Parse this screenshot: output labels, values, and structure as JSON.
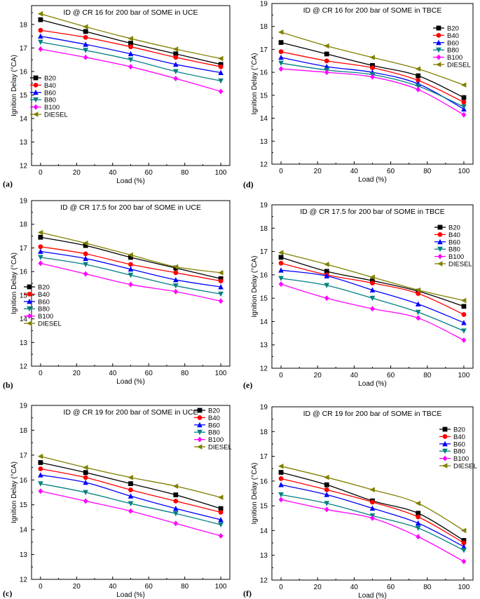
{
  "legend_labels": [
    "B20",
    "B40",
    "B60",
    "B80",
    "B100",
    "DIESEL"
  ],
  "series_colors": [
    "#000000",
    "#ff0000",
    "#0000ff",
    "#008080",
    "#ff00ff",
    "#808000"
  ],
  "series_markers": [
    "square",
    "circle",
    "triangle-up",
    "triangle-down",
    "diamond",
    "triangle-left"
  ],
  "chart_data": [
    {
      "panel_label": "(a)",
      "type": "line",
      "title": "ID @ CR 16 for 200 bar of SOME in UCE",
      "xlabel": "Load (%)",
      "ylabel": "Ignition Delay (°CA)",
      "x": [
        0,
        25,
        50,
        75,
        100
      ],
      "xlim": [
        -5,
        105
      ],
      "ylim": [
        12,
        18.8
      ],
      "xticks": [
        "0",
        "20",
        "40",
        "60",
        "80",
        "100"
      ],
      "yticks": [
        "12",
        "13",
        "14",
        "15",
        "16",
        "17",
        "18"
      ],
      "legend_position": "middle-left",
      "series": [
        {
          "name": "B20",
          "values": [
            18.2,
            17.7,
            17.2,
            16.75,
            16.3
          ]
        },
        {
          "name": "B40",
          "values": [
            17.75,
            17.45,
            17.05,
            16.6,
            16.2
          ]
        },
        {
          "name": "B60",
          "values": [
            17.5,
            17.15,
            16.75,
            16.3,
            15.95
          ]
        },
        {
          "name": "B80",
          "values": [
            17.25,
            16.9,
            16.5,
            16.0,
            15.6
          ]
        },
        {
          "name": "B100",
          "values": [
            16.95,
            16.6,
            16.2,
            15.7,
            15.15
          ]
        },
        {
          "name": "DIESEL",
          "values": [
            18.45,
            17.9,
            17.4,
            16.95,
            16.55
          ]
        }
      ]
    },
    {
      "panel_label": "(d)",
      "type": "line",
      "title": "ID @ CR 16 for 200 bar of SOME in TBCE",
      "xlabel": "Load (%)",
      "ylabel": "Ignition Delay (°CA)",
      "x": [
        0,
        25,
        50,
        75,
        100
      ],
      "xlim": [
        -5,
        105
      ],
      "ylim": [
        12,
        19
      ],
      "xticks": [
        "0",
        "20",
        "40",
        "60",
        "80",
        "100"
      ],
      "yticks": [
        "12",
        "13",
        "14",
        "15",
        "16",
        "17",
        "18",
        "19"
      ],
      "legend_position": "top-right",
      "series": [
        {
          "name": "B20",
          "values": [
            17.3,
            16.8,
            16.3,
            15.85,
            14.9
          ]
        },
        {
          "name": "B40",
          "values": [
            16.9,
            16.5,
            16.2,
            15.65,
            14.7
          ]
        },
        {
          "name": "B60",
          "values": [
            16.65,
            16.25,
            16.0,
            15.5,
            14.4
          ]
        },
        {
          "name": "B80",
          "values": [
            16.4,
            16.1,
            15.9,
            15.4,
            14.5
          ]
        },
        {
          "name": "B100",
          "values": [
            16.15,
            16.0,
            15.8,
            15.25,
            14.15
          ]
        },
        {
          "name": "DIESEL",
          "values": [
            17.75,
            17.15,
            16.65,
            16.15,
            15.45
          ]
        }
      ]
    },
    {
      "panel_label": "(b)",
      "type": "line",
      "title": "ID @ CR 17.5 for 200 bar of SOME in UCE",
      "xlabel": "Load (%)",
      "ylabel": "Ignition Delay (°CA)",
      "x": [
        0,
        25,
        50,
        75,
        100
      ],
      "xlim": [
        -5,
        105
      ],
      "ylim": [
        12,
        19
      ],
      "xticks": [
        "0",
        "20",
        "40",
        "60",
        "80",
        "100"
      ],
      "yticks": [
        "12",
        "13",
        "14",
        "15",
        "16",
        "17",
        "18",
        "19"
      ],
      "legend_position": "bottom-left",
      "series": [
        {
          "name": "B20",
          "values": [
            17.45,
            17.1,
            16.6,
            16.15,
            15.7
          ]
        },
        {
          "name": "B40",
          "values": [
            17.05,
            16.75,
            16.3,
            15.95,
            15.6
          ]
        },
        {
          "name": "B60",
          "values": [
            16.85,
            16.55,
            16.1,
            15.65,
            15.35
          ]
        },
        {
          "name": "B80",
          "values": [
            16.6,
            16.3,
            15.85,
            15.4,
            15.05
          ]
        },
        {
          "name": "B100",
          "values": [
            16.35,
            15.9,
            15.45,
            15.15,
            14.75
          ]
        },
        {
          "name": "DIESEL",
          "values": [
            17.65,
            17.2,
            16.7,
            16.2,
            15.95
          ]
        }
      ]
    },
    {
      "panel_label": "(e)",
      "type": "line",
      "title": "ID @ CR 17.5 for 200 bar of SOME in TBCE",
      "xlabel": "Load (%)",
      "ylabel": "Ignition Delay (°CA)",
      "x": [
        0,
        25,
        50,
        75,
        100
      ],
      "xlim": [
        -5,
        105
      ],
      "ylim": [
        12,
        19
      ],
      "xticks": [
        "0",
        "20",
        "40",
        "60",
        "80",
        "100"
      ],
      "yticks": [
        "12",
        "13",
        "14",
        "15",
        "16",
        "17",
        "18",
        "19"
      ],
      "legend_position": "top-right",
      "series": [
        {
          "name": "B20",
          "values": [
            16.75,
            16.15,
            15.75,
            15.3,
            14.65
          ]
        },
        {
          "name": "B40",
          "values": [
            16.5,
            16.0,
            15.65,
            15.2,
            14.3
          ]
        },
        {
          "name": "B60",
          "values": [
            16.2,
            15.95,
            15.35,
            14.75,
            13.95
          ]
        },
        {
          "name": "B80",
          "values": [
            15.85,
            15.55,
            15.0,
            14.4,
            13.6
          ]
        },
        {
          "name": "B100",
          "values": [
            15.6,
            15.0,
            14.55,
            14.15,
            13.2
          ]
        },
        {
          "name": "DIESEL",
          "values": [
            16.95,
            16.45,
            15.9,
            15.35,
            14.9
          ]
        }
      ]
    },
    {
      "panel_label": "(c)",
      "type": "line",
      "title": "ID @ CR 19 for 200 bar of SOME in UCE",
      "xlabel": "Load (%)",
      "ylabel": "Ignition Delay (°CA)",
      "x": [
        0,
        25,
        50,
        75,
        100
      ],
      "xlim": [
        -5,
        105
      ],
      "ylim": [
        12,
        19
      ],
      "xticks": [
        "0",
        "20",
        "40",
        "60",
        "80",
        "100"
      ],
      "yticks": [
        "12",
        "13",
        "14",
        "15",
        "16",
        "17",
        "18",
        "19"
      ],
      "legend_position": "top-right",
      "series": [
        {
          "name": "B20",
          "values": [
            16.7,
            16.3,
            15.85,
            15.4,
            14.85
          ]
        },
        {
          "name": "B40",
          "values": [
            16.45,
            16.1,
            15.6,
            15.15,
            14.7
          ]
        },
        {
          "name": "B60",
          "values": [
            16.2,
            15.9,
            15.35,
            14.85,
            14.4
          ]
        },
        {
          "name": "B80",
          "values": [
            15.85,
            15.5,
            15.05,
            14.65,
            14.2
          ]
        },
        {
          "name": "B100",
          "values": [
            15.55,
            15.15,
            14.75,
            14.25,
            13.75
          ]
        },
        {
          "name": "DIESEL",
          "values": [
            16.95,
            16.5,
            16.1,
            15.75,
            15.3
          ]
        }
      ]
    },
    {
      "panel_label": "(f)",
      "type": "line",
      "title": "ID @ CR 19 for 200 bar of SOME in TBCE",
      "xlabel": "Load (%)",
      "ylabel": "Ignition Delay (°CA)",
      "x": [
        0,
        25,
        50,
        75,
        100
      ],
      "xlim": [
        -5,
        105
      ],
      "ylim": [
        12,
        19
      ],
      "xticks": [
        "0",
        "20",
        "40",
        "60",
        "80",
        "100"
      ],
      "yticks": [
        "12",
        "13",
        "14",
        "15",
        "16",
        "17",
        "18",
        "19"
      ],
      "legend_position": "top-right",
      "series": [
        {
          "name": "B20",
          "values": [
            16.35,
            15.85,
            15.2,
            14.7,
            13.6
          ]
        },
        {
          "name": "B40",
          "values": [
            16.1,
            15.65,
            15.15,
            14.55,
            13.5
          ]
        },
        {
          "name": "B60",
          "values": [
            15.85,
            15.45,
            14.9,
            14.3,
            13.35
          ]
        },
        {
          "name": "B80",
          "values": [
            15.45,
            15.1,
            14.6,
            14.1,
            13.2
          ]
        },
        {
          "name": "B100",
          "values": [
            15.25,
            14.85,
            14.5,
            13.75,
            12.75
          ]
        },
        {
          "name": "DIESEL",
          "values": [
            16.6,
            16.15,
            15.65,
            15.1,
            14.0
          ]
        }
      ]
    }
  ]
}
